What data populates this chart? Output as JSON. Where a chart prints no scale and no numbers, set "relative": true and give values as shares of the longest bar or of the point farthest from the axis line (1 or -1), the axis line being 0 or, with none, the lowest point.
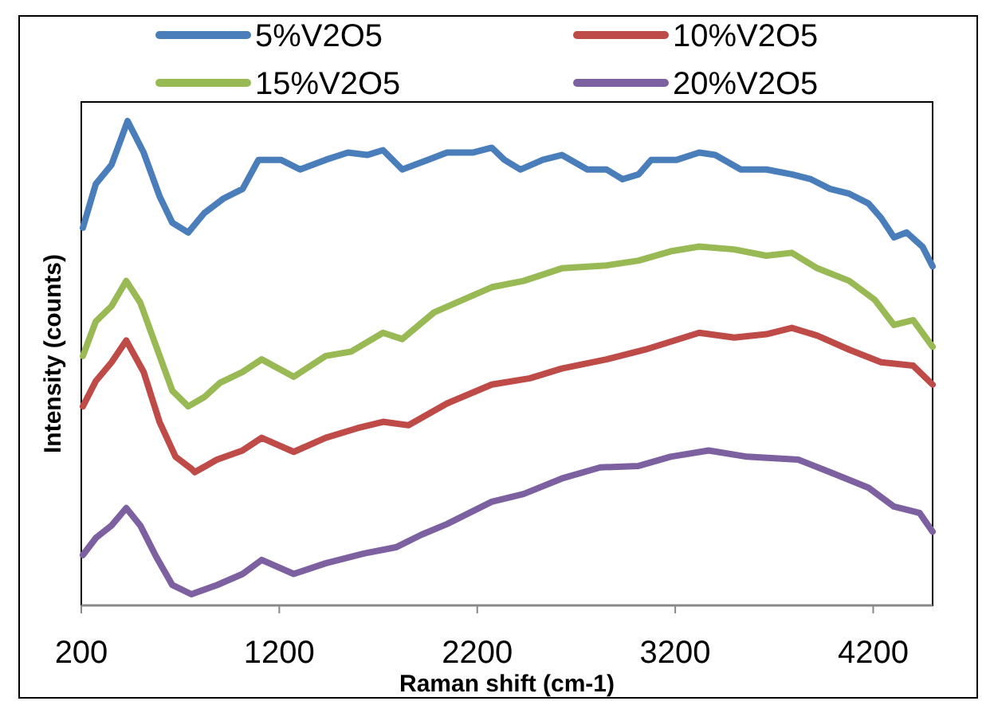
{
  "chart_data": {
    "type": "line",
    "relative": true,
    "xlabel": "Raman shift (cm-1)",
    "ylabel": "Intensity (counts)",
    "xlim": [
      200,
      4500
    ],
    "xticks": [
      200,
      1200,
      2200,
      3200,
      4200
    ],
    "tick_labels": "x",
    "legend": "top",
    "grid": false,
    "marker": "none",
    "line_style": "solid",
    "series": [
      {
        "name": "5%V2O5",
        "color": "#4a7ebb",
        "x": [
          208,
          273,
          353,
          434,
          515,
          595,
          660,
          740,
          821,
          918,
          1015,
          1095,
          1208,
          1305,
          1434,
          1547,
          1644,
          1724,
          1821,
          1950,
          2047,
          2176,
          2273,
          2337,
          2418,
          2531,
          2627,
          2756,
          2853,
          2934,
          3015,
          3079,
          3208,
          3321,
          3402,
          3531,
          3660,
          3789,
          3885,
          3982,
          4079,
          4176,
          4240,
          4305,
          4369,
          4450,
          4500
        ],
        "values": [
          0.78,
          0.87,
          0.91,
          1.0,
          0.935,
          0.845,
          0.79,
          0.77,
          0.81,
          0.84,
          0.86,
          0.92,
          0.92,
          0.9,
          0.92,
          0.935,
          0.93,
          0.94,
          0.9,
          0.92,
          0.935,
          0.935,
          0.945,
          0.92,
          0.9,
          0.92,
          0.93,
          0.9,
          0.9,
          0.88,
          0.89,
          0.92,
          0.92,
          0.935,
          0.93,
          0.9,
          0.9,
          0.89,
          0.88,
          0.86,
          0.85,
          0.83,
          0.8,
          0.76,
          0.77,
          0.74,
          0.7
        ]
      },
      {
        "name": "10%V2O5",
        "color": "#be4b48",
        "x": [
          208,
          273,
          353,
          427,
          515,
          595,
          676,
          756,
          773,
          885,
          1015,
          1111,
          1273,
          1434,
          1595,
          1724,
          1853,
          2047,
          2273,
          2466,
          2627,
          2853,
          3047,
          3321,
          3498,
          3660,
          3789,
          3918,
          4079,
          4240,
          4402,
          4500
        ],
        "values": [
          0.411,
          0.463,
          0.502,
          0.547,
          0.482,
          0.379,
          0.307,
          0.282,
          0.275,
          0.301,
          0.32,
          0.346,
          0.317,
          0.346,
          0.366,
          0.379,
          0.372,
          0.417,
          0.456,
          0.469,
          0.489,
          0.508,
          0.528,
          0.563,
          0.553,
          0.56,
          0.573,
          0.557,
          0.528,
          0.502,
          0.495,
          0.456
        ]
      },
      {
        "name": "15%V2O5",
        "color": "#98b954",
        "x": [
          208,
          273,
          353,
          427,
          498,
          579,
          660,
          740,
          821,
          902,
          1015,
          1111,
          1273,
          1434,
          1563,
          1724,
          1821,
          1982,
          2111,
          2273,
          2434,
          2627,
          2853,
          3015,
          3176,
          3321,
          3498,
          3660,
          3789,
          3918,
          4079,
          4208,
          4305,
          4402,
          4500
        ],
        "values": [
          0.515,
          0.586,
          0.618,
          0.67,
          0.625,
          0.534,
          0.443,
          0.411,
          0.43,
          0.46,
          0.482,
          0.508,
          0.472,
          0.515,
          0.524,
          0.563,
          0.55,
          0.605,
          0.628,
          0.657,
          0.67,
          0.696,
          0.702,
          0.712,
          0.731,
          0.741,
          0.735,
          0.722,
          0.728,
          0.696,
          0.67,
          0.631,
          0.579,
          0.589,
          0.534
        ]
      },
      {
        "name": "20%V2O5",
        "color": "#7d60a0",
        "x": [
          208,
          273,
          353,
          427,
          498,
          579,
          660,
          756,
          885,
          1015,
          1111,
          1273,
          1434,
          1627,
          1789,
          1918,
          2047,
          2273,
          2434,
          2627,
          2821,
          3015,
          3176,
          3369,
          3563,
          3821,
          3982,
          4176,
          4305,
          4434,
          4500
        ],
        "values": [
          0.104,
          0.139,
          0.165,
          0.201,
          0.165,
          0.1,
          0.042,
          0.023,
          0.042,
          0.065,
          0.094,
          0.065,
          0.087,
          0.107,
          0.12,
          0.146,
          0.168,
          0.214,
          0.23,
          0.262,
          0.285,
          0.288,
          0.307,
          0.32,
          0.307,
          0.301,
          0.275,
          0.243,
          0.204,
          0.191,
          0.152
        ]
      }
    ]
  }
}
